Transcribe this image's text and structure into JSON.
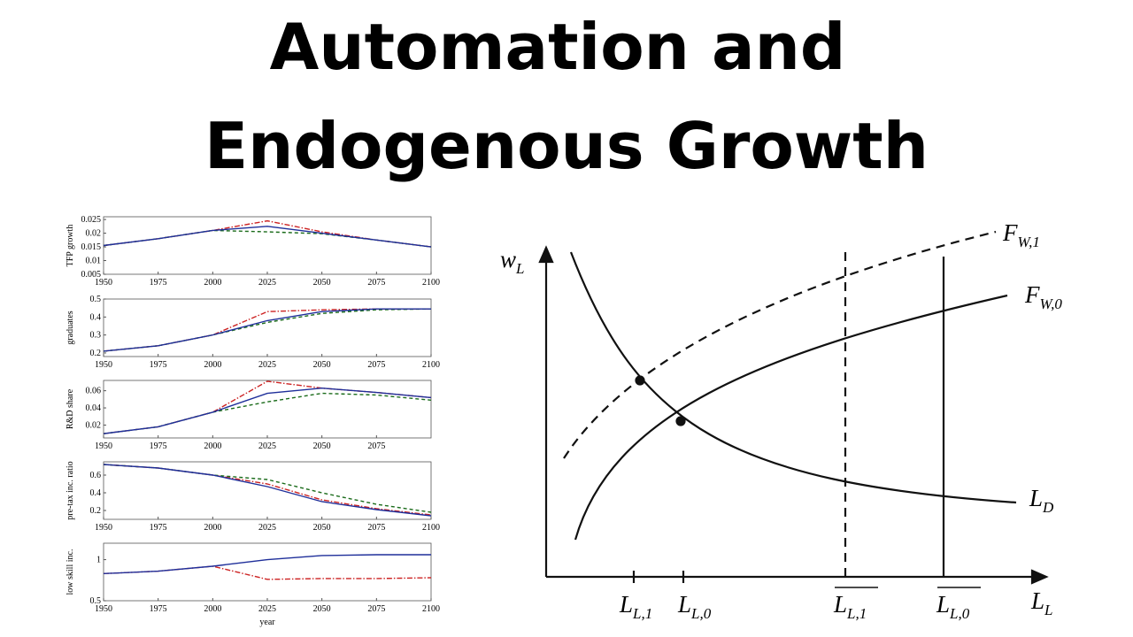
{
  "title": [
    "Automation and",
    "Endogenous Growth"
  ],
  "chart_data": [
    {
      "type": "line",
      "y_label": "TFP growth",
      "x": [
        1950,
        1975,
        2000,
        2025,
        2050,
        2075,
        2100
      ],
      "xlim": [
        1950,
        2100
      ],
      "xticks": [
        1950,
        1975,
        2000,
        2025,
        2050,
        2075,
        2100
      ],
      "ylim": [
        0.005,
        0.026
      ],
      "yticks": [
        0.005,
        0.01,
        0.015,
        0.02,
        0.025
      ],
      "series": [
        {
          "color": "#cc2222",
          "dash": "dashdot",
          "values": [
            0.0155,
            0.018,
            0.021,
            0.0245,
            0.0205,
            0.0175,
            0.015
          ]
        },
        {
          "color": "#1a6b1a",
          "dash": "dashed",
          "values": [
            0.0155,
            0.018,
            0.021,
            0.0205,
            0.0198,
            0.0175,
            0.015
          ]
        },
        {
          "color": "#1f2f9a",
          "dash": "solid",
          "values": [
            0.0155,
            0.018,
            0.021,
            0.0225,
            0.02,
            0.0175,
            0.015
          ]
        }
      ]
    },
    {
      "type": "line",
      "y_label": "graduates",
      "x": [
        1950,
        1975,
        2000,
        2025,
        2050,
        2075,
        2100
      ],
      "xlim": [
        1950,
        2100
      ],
      "xticks": [
        1950,
        1975,
        2000,
        2025,
        2050,
        2075,
        2100
      ],
      "ylim": [
        0.18,
        0.5
      ],
      "yticks": [
        0.2,
        0.3,
        0.4,
        0.5
      ],
      "series": [
        {
          "color": "#cc2222",
          "dash": "dashdot",
          "values": [
            0.21,
            0.24,
            0.3,
            0.43,
            0.44,
            0.445,
            0.445
          ]
        },
        {
          "color": "#1a6b1a",
          "dash": "dashed",
          "values": [
            0.21,
            0.24,
            0.3,
            0.37,
            0.42,
            0.44,
            0.445
          ]
        },
        {
          "color": "#1f2f9a",
          "dash": "solid",
          "values": [
            0.21,
            0.24,
            0.3,
            0.38,
            0.43,
            0.445,
            0.445
          ]
        }
      ]
    },
    {
      "type": "line",
      "y_label": "R&D share",
      "x": [
        1950,
        1975,
        2000,
        2025,
        2050,
        2075,
        2100
      ],
      "xlim": [
        1950,
        2100
      ],
      "xticks": [
        1950,
        1975,
        2000,
        2025,
        2050,
        2075
      ],
      "ylim": [
        0.005,
        0.072
      ],
      "yticks": [
        0.02,
        0.04,
        0.06
      ],
      "series": [
        {
          "color": "#cc2222",
          "dash": "dashdot",
          "values": [
            0.01,
            0.018,
            0.035,
            0.071,
            0.063,
            0.058,
            0.052
          ]
        },
        {
          "color": "#1a6b1a",
          "dash": "dashed",
          "values": [
            0.01,
            0.018,
            0.035,
            0.047,
            0.057,
            0.055,
            0.049
          ]
        },
        {
          "color": "#1f2f9a",
          "dash": "solid",
          "values": [
            0.01,
            0.018,
            0.035,
            0.057,
            0.063,
            0.058,
            0.052
          ]
        }
      ]
    },
    {
      "type": "line",
      "y_label": "pre-tax inc. ratio",
      "x": [
        1950,
        1975,
        2000,
        2025,
        2050,
        2075,
        2100
      ],
      "xlim": [
        1950,
        2100
      ],
      "xticks": [
        1950,
        1975,
        2000,
        2025,
        2050,
        2075,
        2100
      ],
      "ylim": [
        0.1,
        0.75
      ],
      "yticks": [
        0.2,
        0.4,
        0.6
      ],
      "series": [
        {
          "color": "#cc2222",
          "dash": "dashdot",
          "values": [
            0.72,
            0.68,
            0.6,
            0.5,
            0.32,
            0.22,
            0.15
          ]
        },
        {
          "color": "#1a6b1a",
          "dash": "dashed",
          "values": [
            0.72,
            0.68,
            0.6,
            0.55,
            0.4,
            0.27,
            0.18
          ]
        },
        {
          "color": "#1f2f9a",
          "dash": "solid",
          "values": [
            0.72,
            0.68,
            0.6,
            0.47,
            0.3,
            0.21,
            0.14
          ]
        }
      ]
    },
    {
      "type": "line",
      "y_label": "low skill inc.",
      "x_label": "year",
      "x": [
        1950,
        1975,
        2000,
        2025,
        2050,
        2075,
        2100
      ],
      "xlim": [
        1950,
        2100
      ],
      "xticks": [
        1950,
        1975,
        2000,
        2025,
        2050,
        2075,
        2100
      ],
      "ylim": [
        0.5,
        1.2
      ],
      "yticks": [
        0.5,
        1
      ],
      "series": [
        {
          "color": "#cc2222",
          "dash": "dashdot",
          "values": [
            0.83,
            0.86,
            0.92,
            0.76,
            0.77,
            0.77,
            0.78
          ]
        },
        {
          "color": "#1f2f9a",
          "dash": "solid",
          "values": [
            0.83,
            0.86,
            0.92,
            1.0,
            1.05,
            1.06,
            1.06
          ]
        }
      ]
    }
  ],
  "diagram": {
    "labels": [
      {
        "base": "w",
        "sub": "L"
      },
      {
        "base": "F",
        "sub": "W,1"
      },
      {
        "base": "F",
        "sub": "W,0"
      },
      {
        "base": "L",
        "sub": "D"
      },
      {
        "base": "L",
        "sub": "L,1"
      },
      {
        "base": "L",
        "sub": "L,0"
      },
      {
        "base": "L",
        "sub": "L,1"
      },
      {
        "base": "L",
        "sub": "L,0"
      },
      {
        "base": "L",
        "sub": "L"
      }
    ]
  }
}
